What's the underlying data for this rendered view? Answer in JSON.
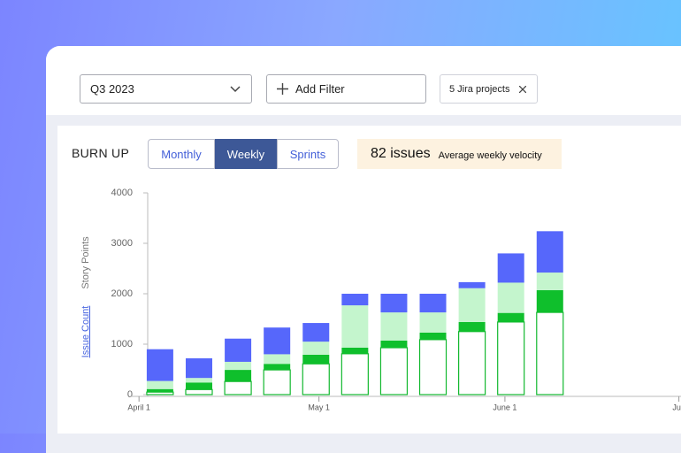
{
  "toolbar": {
    "period": "Q3 2023",
    "add_filter": "Add Filter",
    "projects": "5 Jira projects"
  },
  "panel": {
    "tabs": [
      "Monthly",
      "Weekly",
      "Sprints"
    ],
    "active_tab": 1,
    "metric": "82 issues",
    "metric_label": "Average weekly velocity"
  },
  "chart_data": {
    "type": "bar",
    "stacked": true,
    "title": "BURN UP",
    "ylabel": "Story Points",
    "ylabel_alt": "Issue Count",
    "x": [
      3.5,
      10,
      16.5,
      23,
      29.5,
      36,
      42.5,
      49,
      55.5,
      62,
      68.5
    ],
    "series": [
      {
        "color": "#ffffff",
        "border": "#12b82e",
        "values": [
          50,
          100,
          260,
          490,
          610,
          810,
          930,
          1090,
          1250,
          1440,
          1630
        ]
      },
      {
        "color": "#0fbf2c",
        "values": [
          60,
          140,
          230,
          120,
          180,
          120,
          140,
          140,
          190,
          180,
          440
        ]
      },
      {
        "color": "#c4f5cd",
        "values": [
          160,
          90,
          160,
          190,
          260,
          840,
          560,
          400,
          670,
          600,
          350
        ]
      },
      {
        "color": "#5667fb",
        "values": [
          630,
          390,
          460,
          530,
          370,
          230,
          370,
          370,
          120,
          580,
          820
        ]
      }
    ],
    "xlim": [
      -1.5,
      90.5
    ],
    "xticks": [
      {
        "value": 0,
        "label": "April 1"
      },
      {
        "value": 30,
        "label": "May 1"
      },
      {
        "value": 61,
        "label": "June 1"
      },
      {
        "value": 90,
        "label": "Jun"
      }
    ],
    "ylim": [
      0,
      4000
    ],
    "yticks": [
      0,
      1000,
      2000,
      3000,
      4000
    ]
  }
}
